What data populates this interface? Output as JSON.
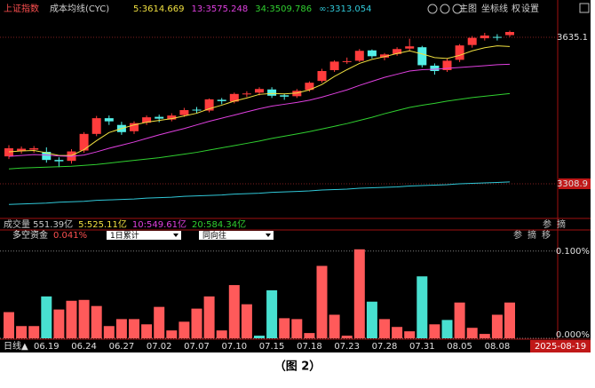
{
  "caption": "（图 2）",
  "header": {
    "symbol": "上证指数",
    "indicator": "成本均线(CYC)",
    "tools": [
      "主图",
      "坐标线",
      "权",
      "设置"
    ]
  },
  "chart_data": [
    {
      "type": "candlestick",
      "up_color": "#ff3c3c",
      "down_color": "#54f0e8",
      "ylim": [
        3233.8,
        3682.6
      ],
      "yticks": [
        3635.1,
        3308.9
      ],
      "grid": true,
      "open": [
        3370,
        3382,
        3385,
        3380,
        3362,
        3360,
        3383,
        3420,
        3455,
        3440,
        3426,
        3445,
        3458,
        3452,
        3462,
        3474,
        3472,
        3496,
        3492,
        3508,
        3512,
        3519,
        3506,
        3504,
        3518,
        3538,
        3562,
        3580,
        3583,
        3606,
        3590,
        3598,
        3610,
        3613,
        3572,
        3562,
        3585,
        3618,
        3633,
        3636,
        3640
      ],
      "high": [
        3395,
        3392,
        3393,
        3390,
        3368,
        3386,
        3424,
        3460,
        3461,
        3447,
        3448,
        3461,
        3463,
        3466,
        3478,
        3480,
        3499,
        3500,
        3512,
        3515,
        3524,
        3524,
        3510,
        3520,
        3537,
        3565,
        3584,
        3590,
        3609,
        3608,
        3600,
        3613,
        3632,
        3616,
        3577,
        3588,
        3620,
        3638,
        3645,
        3642,
        3650
      ],
      "low": [
        3364,
        3376,
        3378,
        3356,
        3346,
        3354,
        3378,
        3415,
        3440,
        3418,
        3420,
        3440,
        3446,
        3448,
        3458,
        3466,
        3468,
        3486,
        3488,
        3502,
        3506,
        3500,
        3496,
        3500,
        3514,
        3534,
        3558,
        3576,
        3580,
        3588,
        3584,
        3594,
        3604,
        3568,
        3552,
        3558,
        3580,
        3612,
        3628,
        3628,
        3636
      ],
      "close": [
        3388,
        3387,
        3388,
        3362,
        3359,
        3381,
        3420,
        3455,
        3448,
        3424,
        3444,
        3457,
        3454,
        3461,
        3473,
        3473,
        3497,
        3493,
        3509,
        3510,
        3520,
        3505,
        3503,
        3516,
        3534,
        3560,
        3581,
        3582,
        3605,
        3593,
        3597,
        3609,
        3615,
        3573,
        3560,
        3583,
        3617,
        3634,
        3639,
        3635,
        3647
      ],
      "series": [
        {
          "name": "5:3614.669",
          "color": "#f0e040",
          "values": [
            3380,
            3382,
            3383,
            3378,
            3372,
            3372,
            3385,
            3405,
            3423,
            3432,
            3440,
            3446,
            3450,
            3454,
            3460,
            3466,
            3476,
            3484,
            3493,
            3500,
            3508,
            3510,
            3509,
            3511,
            3518,
            3530,
            3548,
            3563,
            3577,
            3586,
            3592,
            3599,
            3605,
            3598,
            3590,
            3588,
            3595,
            3605,
            3612,
            3616,
            3614.7
          ]
        },
        {
          "name": "13:3575.248",
          "color": "#e040e0",
          "values": [
            3370,
            3372,
            3374,
            3373,
            3371,
            3370,
            3373,
            3380,
            3388,
            3395,
            3402,
            3410,
            3418,
            3425,
            3432,
            3440,
            3448,
            3455,
            3462,
            3469,
            3476,
            3482,
            3486,
            3490,
            3495,
            3502,
            3510,
            3518,
            3528,
            3537,
            3546,
            3553,
            3560,
            3563,
            3564,
            3566,
            3568,
            3570,
            3572,
            3574,
            3575.2
          ]
        },
        {
          "name": "34:3509.786",
          "color": "#30d030",
          "values": [
            3342,
            3344,
            3345,
            3346,
            3347,
            3348,
            3350,
            3352,
            3355,
            3358,
            3361,
            3364,
            3367,
            3371,
            3375,
            3379,
            3384,
            3389,
            3394,
            3399,
            3404,
            3410,
            3415,
            3420,
            3425,
            3431,
            3437,
            3443,
            3450,
            3457,
            3465,
            3472,
            3479,
            3484,
            3488,
            3493,
            3497,
            3501,
            3504,
            3507,
            3509.8
          ]
        },
        {
          "name": "∞:3313.054",
          "color": "#30c8d8",
          "values": [
            3263,
            3264,
            3265,
            3266,
            3268,
            3269,
            3270,
            3272,
            3273,
            3274,
            3275,
            3277,
            3278,
            3279,
            3281,
            3282,
            3283,
            3284,
            3286,
            3287,
            3288,
            3290,
            3291,
            3292,
            3293,
            3295,
            3296,
            3297,
            3299,
            3300,
            3301,
            3302,
            3304,
            3305,
            3306,
            3307,
            3309,
            3310,
            3311,
            3312,
            3313.1
          ]
        }
      ]
    },
    {
      "type": "bar",
      "title": "多空资金",
      "current": "0.041%",
      "selectors": [
        "1日累计",
        "同向往"
      ],
      "volume_header": [
        {
          "text": "成交量 551.39亿",
          "color": "#c8c8c8"
        },
        {
          "text": "5:525.11亿",
          "color": "#f0e040"
        },
        {
          "text": "10:549.61亿",
          "color": "#e040e0"
        },
        {
          "text": "20:584.34亿",
          "color": "#30d030"
        }
      ],
      "volume_tools": [
        "参",
        "摘"
      ],
      "fund_tools": [
        "参",
        "摘",
        "移"
      ],
      "period": "日线▲",
      "date_box": "2025-08-19",
      "categories": [
        null,
        null,
        null,
        "06.19",
        null,
        null,
        "06.24",
        null,
        null,
        "06.27",
        null,
        null,
        "07.02",
        null,
        null,
        "07.07",
        null,
        null,
        "07.10",
        null,
        null,
        "07.15",
        null,
        null,
        "07.18",
        null,
        null,
        "07.23",
        null,
        null,
        "07.28",
        null,
        null,
        "07.31",
        null,
        null,
        "08.05",
        null,
        null,
        "08.08",
        null
      ],
      "values": [
        0.03,
        0.014,
        0.014,
        0.048,
        0.033,
        0.043,
        0.044,
        0.037,
        0.014,
        0.022,
        0.022,
        0.016,
        0.036,
        0.009,
        0.019,
        0.034,
        0.048,
        0.009,
        0.061,
        0.039,
        0.003,
        0.055,
        0.023,
        0.022,
        0.006,
        0.083,
        0.027,
        0.003,
        0.102,
        0.042,
        0.022,
        0.013,
        0.008,
        0.071,
        0.016,
        0.021,
        0.041,
        0.012,
        0.005,
        0.027,
        0.041
      ],
      "bar_colors": [
        "#ff5a5a",
        "#ff5a5a",
        "#ff5a5a",
        "#48e0d0",
        "#ff5a5a",
        "#ff5a5a",
        "#ff5a5a",
        "#ff5a5a",
        "#ff5a5a",
        "#ff5a5a",
        "#ff5a5a",
        "#ff5a5a",
        "#ff5a5a",
        "#ff5a5a",
        "#ff5a5a",
        "#ff5a5a",
        "#ff5a5a",
        "#ff5a5a",
        "#ff5a5a",
        "#ff5a5a",
        "#48e0d0",
        "#48e0d0",
        "#ff5a5a",
        "#ff5a5a",
        "#ff5a5a",
        "#ff5a5a",
        "#ff5a5a",
        "#ff5a5a",
        "#ff5a5a",
        "#48e0d0",
        "#ff5a5a",
        "#ff5a5a",
        "#ff5a5a",
        "#48e0d0",
        "#ff5a5a",
        "#48e0d0",
        "#ff5a5a",
        "#ff5a5a",
        "#ff5a5a",
        "#ff5a5a",
        "#ff5a5a"
      ],
      "ylim": [
        0,
        0.113
      ],
      "yticks": [
        {
          "value": 0.1,
          "label": "0.100%"
        },
        {
          "value": 0,
          "label": "0.000%"
        }
      ],
      "grid": true
    }
  ]
}
